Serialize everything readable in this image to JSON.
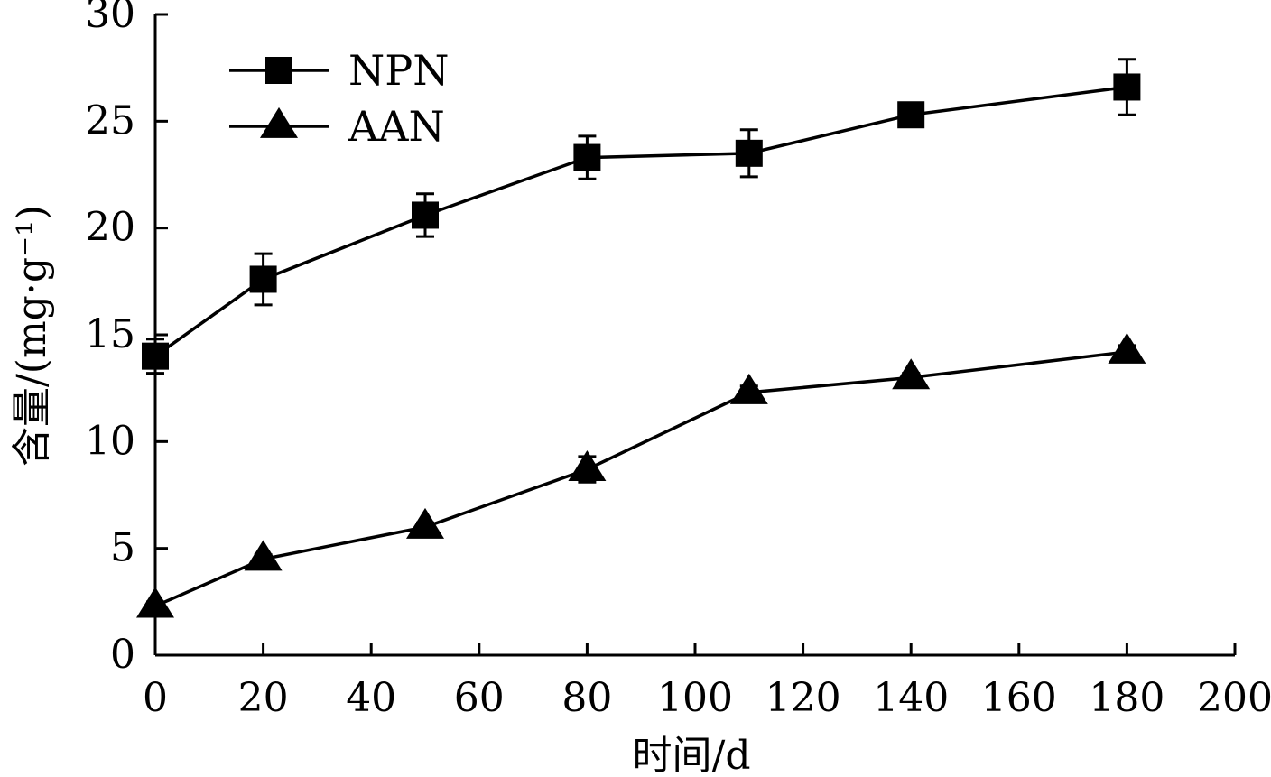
{
  "chart_data": {
    "type": "line",
    "xlabel": "时间/d",
    "ylabel": "含量/(mg·g⁻¹)",
    "xlim": [
      0,
      200
    ],
    "ylim": [
      0,
      30
    ],
    "xticks": [
      0,
      20,
      40,
      60,
      80,
      100,
      120,
      140,
      160,
      180,
      200
    ],
    "yticks": [
      0,
      5,
      10,
      15,
      20,
      25,
      30
    ],
    "grid": false,
    "legend_position": "top-left",
    "x": [
      0,
      20,
      50,
      80,
      110,
      140,
      180
    ],
    "series": [
      {
        "name": "NPN",
        "marker": "square",
        "values": [
          14.0,
          17.6,
          20.6,
          23.3,
          23.5,
          25.3,
          26.6
        ],
        "errors": [
          0.8,
          1.2,
          1.0,
          1.0,
          1.1,
          0.5,
          1.3
        ]
      },
      {
        "name": "AAN",
        "marker": "triangle",
        "values": [
          2.3,
          4.5,
          6.0,
          8.7,
          12.3,
          13.0,
          14.2
        ],
        "errors": [
          0.2,
          0.2,
          0.2,
          0.6,
          0.3,
          0.2,
          0.3
        ]
      }
    ]
  }
}
